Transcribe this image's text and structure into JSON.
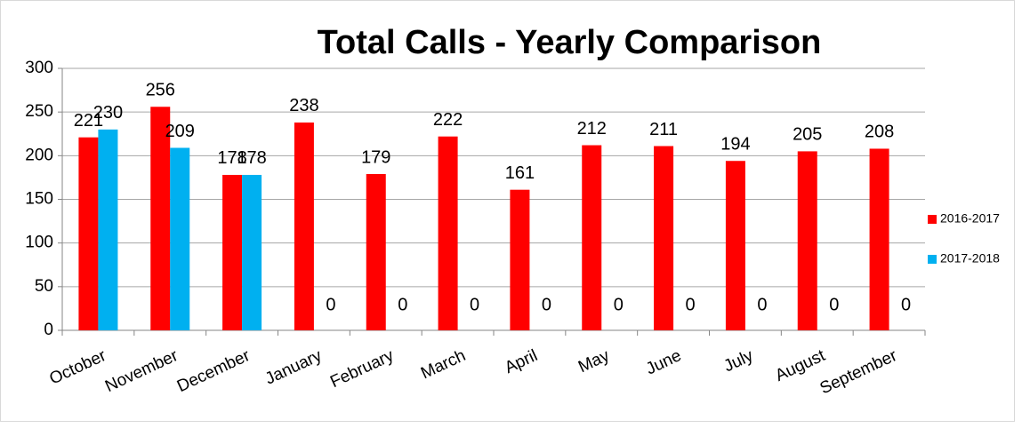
{
  "chart_data": {
    "type": "bar",
    "title": "Total Calls - Yearly Comparison",
    "categories": [
      "October",
      "November",
      "December",
      "January",
      "February",
      "March",
      "April",
      "May",
      "June",
      "July",
      "August",
      "September"
    ],
    "series": [
      {
        "name": "2016-2017",
        "color": "#ff0000",
        "values": [
          221,
          256,
          178,
          238,
          179,
          222,
          161,
          212,
          211,
          194,
          205,
          208
        ]
      },
      {
        "name": "2017-2018",
        "color": "#00b0f0",
        "values": [
          230,
          209,
          178,
          0,
          0,
          0,
          0,
          0,
          0,
          0,
          0,
          0
        ]
      }
    ],
    "ylim": [
      0,
      300
    ],
    "yticks": [
      0,
      50,
      100,
      150,
      200,
      250,
      300
    ],
    "grid": true,
    "legend": "right"
  }
}
